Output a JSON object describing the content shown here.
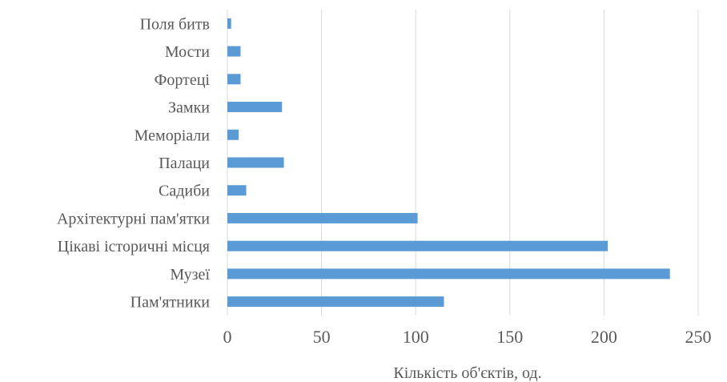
{
  "chart_data": {
    "type": "bar",
    "orientation": "horizontal",
    "categories": [
      "Поля битв",
      "Мости",
      "Фортеці",
      "Замки",
      "Меморіали",
      "Палаци",
      "Садиби",
      "Архітектурні пам'ятки",
      "Цікаві історичні місця",
      "Музеї",
      "Пам'ятники"
    ],
    "values": [
      2,
      7,
      7,
      29,
      6,
      30,
      10,
      101,
      202,
      235,
      115
    ],
    "xlabel": "Кількість об'єктів, од.",
    "xlim": [
      0,
      260
    ],
    "xticks": [
      0,
      50,
      100,
      150,
      200,
      250
    ],
    "xtick_labels": [
      "0",
      "50",
      "100",
      "150",
      "200",
      "250"
    ],
    "grid": "vertical",
    "legend": "none",
    "colors": {
      "bar": "#5b9bd5",
      "gridline": "#d9d9d9",
      "text": "#595959"
    }
  }
}
